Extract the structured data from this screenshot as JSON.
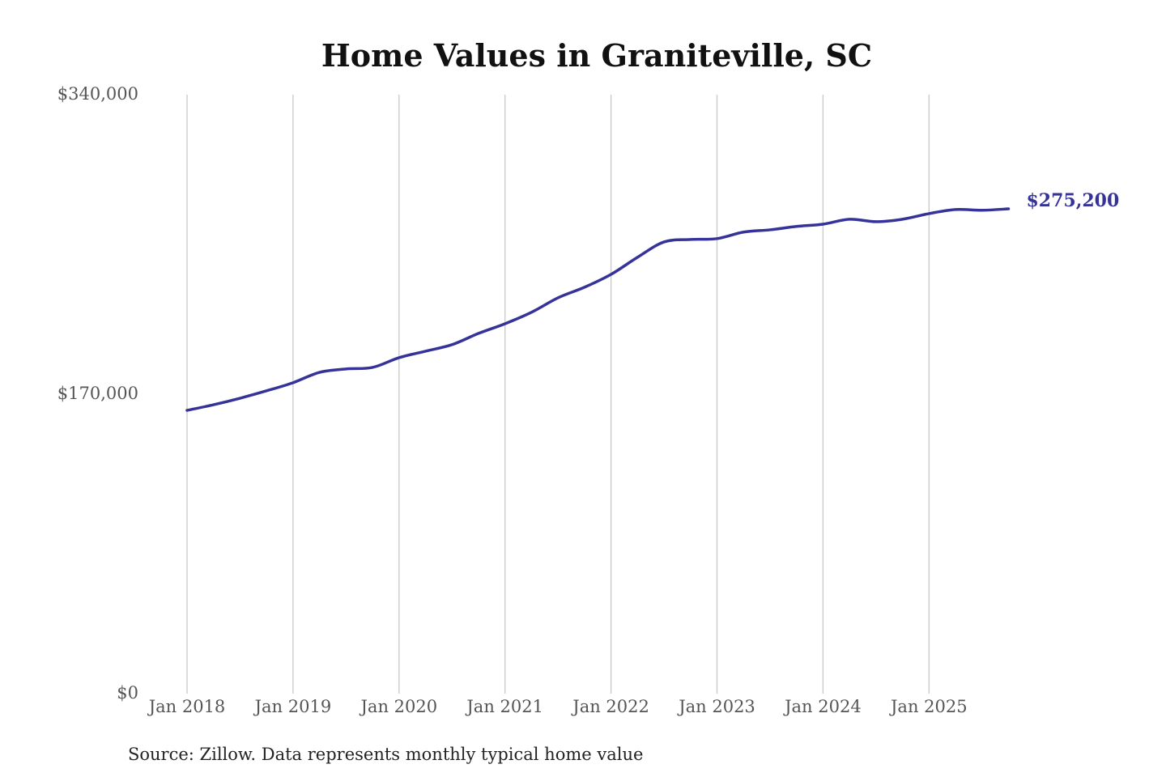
{
  "chart_data": {
    "type": "line",
    "title": "Home Values in Graniteville, SC",
    "source": "Source: Zillow. Data represents monthly typical home value",
    "ylim": [
      0,
      340000
    ],
    "y_ticks": [
      0,
      170000,
      340000
    ],
    "y_tick_labels": [
      "$0",
      "$170,000",
      "$340,000"
    ],
    "x_tick_labels": [
      "Jan 2018",
      "Jan 2019",
      "Jan 2020",
      "Jan 2021",
      "Jan 2022",
      "Jan 2023",
      "Jan 2024",
      "Jan 2025"
    ],
    "x_ticks": [
      "2018-01",
      "2019-01",
      "2020-01",
      "2021-01",
      "2022-01",
      "2023-01",
      "2024-01",
      "2025-01"
    ],
    "grid": "vertical",
    "line_color": "#35339a",
    "end_label": "$275,200",
    "series": [
      {
        "x": [
          "2018-01",
          "2018-04",
          "2018-07",
          "2018-10",
          "2019-01",
          "2019-04",
          "2019-07",
          "2019-10",
          "2020-01",
          "2020-04",
          "2020-07",
          "2020-10",
          "2021-01",
          "2021-04",
          "2021-07",
          "2021-10",
          "2022-01",
          "2022-04",
          "2022-07",
          "2022-10",
          "2023-01",
          "2023-04",
          "2023-07",
          "2023-10",
          "2024-01",
          "2024-04",
          "2024-07",
          "2024-10",
          "2025-01",
          "2025-04",
          "2025-07",
          "2025-10"
        ],
        "values": [
          160800,
          164000,
          167700,
          171900,
          176500,
          182400,
          184300,
          185200,
          190700,
          194400,
          198100,
          204500,
          210000,
          216500,
          224700,
          230700,
          238000,
          247700,
          256400,
          257800,
          258300,
          262000,
          263300,
          265200,
          266500,
          269300,
          267900,
          269300,
          272500,
          274800,
          274400,
          275200
        ]
      }
    ]
  }
}
